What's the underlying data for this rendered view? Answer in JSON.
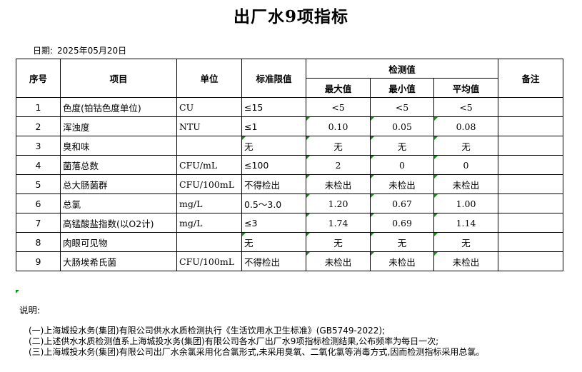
{
  "header": {
    "title": "出厂水9项指标",
    "date_label": "日期:",
    "date": "2025年05月20日"
  },
  "table": {
    "columns": {
      "no": "序号",
      "item": "项目",
      "unit": "单位",
      "limit": "标准限值",
      "measured": "检测值",
      "max": "最大值",
      "min": "最小值",
      "avg": "平均值",
      "remark": "备注"
    },
    "rows": [
      {
        "no": "1",
        "item": "色度(铂钴色度单位)",
        "unit": "CU",
        "limit": "≤15",
        "max": "<5",
        "min": "<5",
        "avg": "<5"
      },
      {
        "no": "2",
        "item": "浑浊度",
        "unit": "NTU",
        "limit": "≤1",
        "max": "0.10",
        "min": "0.05",
        "avg": "0.08"
      },
      {
        "no": "3",
        "item": "臭和味",
        "unit": null,
        "limit": "无",
        "max": "无",
        "min": "无",
        "avg": "无"
      },
      {
        "no": "4",
        "item": "菌落总数",
        "unit": "CFU/mL",
        "limit": "≤100",
        "max": "2",
        "min": "0",
        "avg": "0"
      },
      {
        "no": "5",
        "item": "总大肠菌群",
        "unit": "CFU/100mL",
        "limit": "不得检出",
        "max": "未检出",
        "min": "未检出",
        "avg": "未检出"
      },
      {
        "no": "6",
        "item": "总氯",
        "unit": "mg/L",
        "limit": "0.5～3.0",
        "max": "1.20",
        "min": "0.67",
        "avg": "1.00"
      },
      {
        "no": "7",
        "item": "高锰酸盐指数(以O2计)",
        "unit": "mg/L",
        "limit": "≤3",
        "max": "1.74",
        "min": "0.69",
        "avg": "1.14"
      },
      {
        "no": "8",
        "item": "肉眼可见物",
        "unit": null,
        "limit": "无",
        "max": "无",
        "min": "无",
        "avg": "无"
      },
      {
        "no": "9",
        "item": "大肠埃希氏菌",
        "unit": "CFU/100mL",
        "limit": "不得检出",
        "max": "未检出",
        "min": "未检出",
        "avg": "未检出"
      }
    ]
  },
  "notes": {
    "label": "说明:",
    "lines": [
      "(一)上海城投水务(集团)有限公司供水水质检测执行《生活饮用水卫生标准》(GB5749-2022);",
      "(二)上述供水水质检测值系上海城投水务(集团)有限公司各水厂出厂水9项指标检测结果,公布频率为每日一次;",
      "(三)上海城投水务(集团)有限公司出厂水余氯采用化合氯形式,未采用臭氧、二氧化氯等消毒方式,因而检测指标采用总氯。"
    ]
  }
}
